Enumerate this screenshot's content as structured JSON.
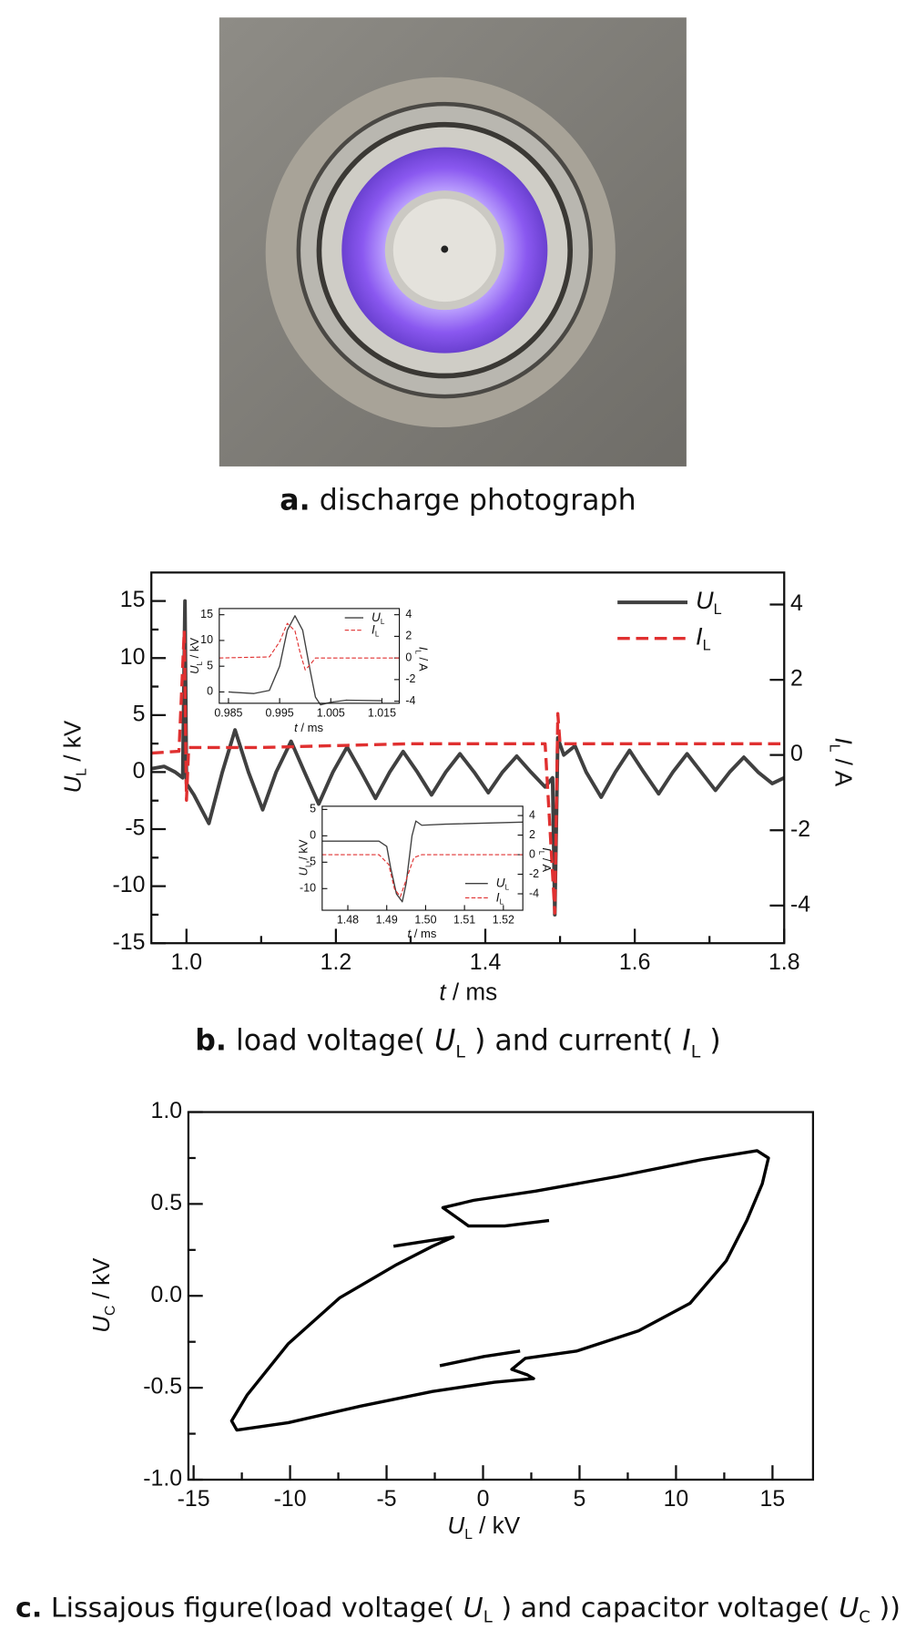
{
  "captions": [
    [
      {
        "text": "a.",
        "style": "bold"
      },
      {
        "text": " discharge photograph",
        "style": "normal"
      }
    ],
    [
      {
        "text": "b.",
        "style": "bold"
      },
      {
        "text": " load voltage( ",
        "style": "normal"
      },
      {
        "text": "U",
        "style": "italic"
      },
      {
        "text": "L",
        "style": "sub"
      },
      {
        "text": " ) and current( ",
        "style": "normal"
      },
      {
        "text": "I",
        "style": "italic"
      },
      {
        "text": "L",
        "style": "sub"
      },
      {
        "text": " )",
        "style": "normal"
      }
    ],
    [
      {
        "text": "c.",
        "style": "bold"
      },
      {
        "text": " Lissajous figure(load voltage( ",
        "style": "normal"
      },
      {
        "text": "U",
        "style": "italic"
      },
      {
        "text": "L",
        "style": "sub"
      },
      {
        "text": " ) and capacitor voltage( ",
        "style": "normal"
      },
      {
        "text": "U",
        "style": "italic"
      },
      {
        "text": "C",
        "style": "sub"
      },
      {
        "text": " ))",
        "style": "normal"
      }
    ]
  ],
  "chart_data": [
    {
      "type": "line",
      "xlabel": [
        {
          "text": "t",
          "style": "italic"
        },
        {
          "text": " / ms",
          "style": "normal"
        }
      ],
      "ylabel": [
        {
          "text": "U",
          "style": "italic"
        },
        {
          "text": "L",
          "style": "sub"
        },
        {
          "text": " / kV",
          "style": "normal"
        }
      ],
      "y2label": [
        {
          "text": "I",
          "style": "italic"
        },
        {
          "text": "L",
          "style": "sub"
        },
        {
          "text": " / A",
          "style": "normal"
        }
      ],
      "xlim": [
        0.953,
        1.8
      ],
      "xticks": [
        {
          "value": 1.0,
          "label": "1.0"
        },
        {
          "value": 1.2,
          "label": "1.2"
        },
        {
          "value": 1.4,
          "label": "1.4"
        },
        {
          "value": 1.6,
          "label": "1.6"
        },
        {
          "value": 1.8,
          "label": "1.8"
        }
      ],
      "xminor": [
        1.1,
        1.3,
        1.5,
        1.7
      ],
      "ylim": [
        -15,
        17.5
      ],
      "yticks": [
        15,
        10,
        5,
        0,
        -5,
        -10,
        -15
      ],
      "yminor": [
        12.5,
        7.5,
        2.5,
        -2.5,
        -7.5,
        -12.5
      ],
      "y2lim": [
        -5,
        4.85
      ],
      "y2ticks": [
        4,
        2,
        0,
        -2,
        -4
      ],
      "legend": "upper right",
      "series": [
        {
          "name": [
            {
              "text": "U",
              "style": "italic"
            },
            {
              "text": "L",
              "style": "sub"
            }
          ],
          "color": "#404040",
          "width": 3.5,
          "dash": "none",
          "x": [
            0.953,
            0.97,
            0.985,
            0.995,
            0.998,
            1.0,
            1.01,
            1.03,
            1.048,
            1.065,
            1.083,
            1.102,
            1.12,
            1.14,
            1.158,
            1.177,
            1.196,
            1.215,
            1.234,
            1.253,
            1.272,
            1.29,
            1.309,
            1.328,
            1.347,
            1.366,
            1.385,
            1.404,
            1.423,
            1.442,
            1.461,
            1.48,
            1.49,
            1.493,
            1.497,
            1.505,
            1.52,
            1.535,
            1.555,
            1.574,
            1.593,
            1.612,
            1.632,
            1.651,
            1.67,
            1.689,
            1.708,
            1.727,
            1.746,
            1.765,
            1.784,
            1.8
          ],
          "values": [
            0.3,
            0.5,
            0,
            -0.5,
            15,
            -1,
            -2,
            -4.5,
            0,
            3.7,
            0,
            -3.3,
            0,
            2.7,
            0,
            -2.8,
            0,
            2.2,
            0,
            -2.3,
            0,
            1.8,
            0,
            -2,
            0,
            1.6,
            0,
            -1.8,
            0,
            1.4,
            0,
            -1.3,
            -0.5,
            -12.5,
            3,
            1.5,
            2.3,
            0,
            -2.2,
            0,
            1.9,
            0,
            -1.9,
            0,
            1.6,
            0,
            -1.6,
            0,
            1.3,
            0,
            -1.0,
            -0.5
          ]
        },
        {
          "name": [
            {
              "text": "I",
              "style": "italic"
            },
            {
              "text": "L",
              "style": "sub"
            }
          ],
          "color": "#e03030",
          "width": 3,
          "dash": "12 6",
          "axis": "y2",
          "x": [
            0.953,
            0.99,
            0.997,
            1.0,
            1.003,
            1.1,
            1.3,
            1.48,
            1.493,
            1.497,
            1.5,
            1.8
          ],
          "values": [
            0.05,
            0.1,
            3.3,
            -1.2,
            0.2,
            0.2,
            0.3,
            0.3,
            -4.2,
            1.1,
            0.3,
            0.3
          ]
        }
      ]
    },
    {
      "type": "line",
      "xlabel": [
        {
          "text": "t",
          "style": "italic"
        },
        {
          "text": " / ms",
          "style": "normal"
        }
      ],
      "ylabel": [
        {
          "text": "U",
          "style": "italic"
        },
        {
          "text": "L",
          "style": "sub"
        },
        {
          "text": " / kV",
          "style": "normal"
        }
      ],
      "y2label": [
        {
          "text": "I",
          "style": "italic"
        },
        {
          "text": "L",
          "style": "sub"
        },
        {
          "text": " / A",
          "style": "normal"
        }
      ],
      "xlim": [
        0.9832,
        1.0184
      ],
      "xticks": [
        0.985,
        0.995,
        1.005,
        1.015
      ],
      "ylim": [
        -2.2,
        16.2
      ],
      "yticks": [
        15,
        10,
        5,
        0
      ],
      "y2lim": [
        -4.19,
        4.57
      ],
      "y2ticks": [
        4,
        2,
        0,
        -2,
        -4
      ],
      "legend": "upper right",
      "series": [
        {
          "name": [
            {
              "text": "U",
              "style": "italic"
            },
            {
              "text": "L",
              "style": "sub"
            }
          ],
          "color": "#404040",
          "width": 1.2,
          "dash": "none",
          "x": [
            0.985,
            0.99,
            0.993,
            0.995,
            0.9965,
            0.998,
            0.9995,
            1.001,
            1.002,
            1.003,
            1.005,
            1.008,
            1.015
          ],
          "values": [
            0,
            -0.3,
            0.3,
            5,
            12,
            14.8,
            12,
            4,
            -1,
            -2.5,
            -2,
            -1.6,
            -1.7
          ]
        },
        {
          "name": [
            {
              "text": "I",
              "style": "italic"
            },
            {
              "text": "L",
              "style": "sub"
            }
          ],
          "color": "#e03030",
          "width": 1,
          "dash": "4 2",
          "axis": "y2",
          "x": [
            0.9832,
            0.993,
            0.995,
            0.9965,
            0.998,
            0.999,
            1.0,
            1.001,
            1.002,
            1.0184
          ],
          "values": [
            0,
            0.1,
            1.5,
            3.2,
            2.5,
            0.5,
            -1.1,
            -0.6,
            0,
            0
          ]
        }
      ]
    },
    {
      "type": "line",
      "xlabel": [
        {
          "text": "t",
          "style": "italic"
        },
        {
          "text": " / ms",
          "style": "normal"
        }
      ],
      "ylabel": [
        {
          "text": "U",
          "style": "italic"
        },
        {
          "text": "L",
          "style": "sub"
        },
        {
          "text": " / kV",
          "style": "normal"
        }
      ],
      "y2label": [
        {
          "text": "I",
          "style": "italic"
        },
        {
          "text": "L",
          "style": "sub"
        },
        {
          "text": " / A",
          "style": "normal"
        }
      ],
      "xlim": [
        1.4734,
        1.525
      ],
      "xticks": [
        1.48,
        1.49,
        {
          "value": 1.5,
          "label": "1.50"
        },
        1.51,
        1.52
      ],
      "ylim": [
        -14.1,
        5.6
      ],
      "yticks": [
        5,
        0,
        -5,
        -10
      ],
      "y2lim": [
        -5.68,
        4.95
      ],
      "y2ticks": [
        4,
        2,
        0,
        -2,
        -4
      ],
      "legend": "lower right",
      "series": [
        {
          "name": [
            {
              "text": "U",
              "style": "italic"
            },
            {
              "text": "L",
              "style": "sub"
            }
          ],
          "color": "#404040",
          "width": 1.2,
          "dash": "none",
          "x": [
            1.4734,
            1.488,
            1.49,
            1.491,
            1.4925,
            1.494,
            1.495,
            1.4965,
            1.4975,
            1.499,
            1.505,
            1.525
          ],
          "values": [
            -1,
            -1,
            -2,
            -6,
            -11,
            -12.5,
            -9,
            0,
            2.8,
            2,
            2.2,
            2.6
          ]
        },
        {
          "name": [
            {
              "text": "I",
              "style": "italic"
            },
            {
              "text": "L",
              "style": "sub"
            }
          ],
          "color": "#e03030",
          "width": 1,
          "dash": "4 2",
          "axis": "y2",
          "x": [
            1.4734,
            1.488,
            1.4905,
            1.492,
            1.4935,
            1.4955,
            1.497,
            1.499,
            1.525
          ],
          "values": [
            0,
            0,
            -1,
            -3.5,
            -4.3,
            -2,
            -0.3,
            0,
            0
          ]
        }
      ]
    },
    {
      "type": "line",
      "xlabel": [
        {
          "text": "U",
          "style": "italic"
        },
        {
          "text": "L",
          "style": "sub"
        },
        {
          "text": " / kV",
          "style": "normal"
        }
      ],
      "ylabel": [
        {
          "text": "U",
          "style": "italic"
        },
        {
          "text": "C",
          "style": "sub"
        },
        {
          "text": " / kV",
          "style": "normal"
        }
      ],
      "xlim": [
        -15.27,
        17.1
      ],
      "xticks": [
        -15,
        -10,
        -5,
        0,
        5,
        10,
        15
      ],
      "xminor": [
        -12.5,
        -7.5,
        -2.5,
        2.5,
        7.5,
        12.5
      ],
      "ylim": [
        -1,
        1
      ],
      "yticks": [
        {
          "value": 1.0,
          "label": "1.0"
        },
        {
          "value": 0.5,
          "label": "0.5"
        },
        {
          "value": 0.0,
          "label": "0.0"
        },
        {
          "value": -0.5,
          "label": "-0.5"
        },
        {
          "value": -1.0,
          "label": "-1.0"
        }
      ],
      "yminor": [
        0.75,
        0.25,
        -0.25,
        -0.75
      ],
      "series": [
        {
          "color": "#000000",
          "width": 3,
          "dash": "none",
          "x": [
            3.42,
            1.12,
            -0.75,
            -1.55,
            -2.08,
            -0.48,
            2.72,
            6.99,
            11.27,
            14.2,
            14.79,
            14.47,
            13.67,
            12.6,
            10.73,
            8.06,
            4.86,
            2.19,
            1.49,
            2.3,
            2.62,
            0.59,
            -2.62,
            -6.35,
            -10.09,
            -12.76,
            -13.03,
            -12.23,
            -10.09,
            -7.42,
            -4.48,
            -2.62,
            -1.55,
            -4.64,
            null,
            -2.24,
            0.05,
            1.92
          ],
          "values": [
            0.41,
            0.38,
            0.38,
            0.44,
            0.48,
            0.52,
            0.57,
            0.65,
            0.74,
            0.79,
            0.75,
            0.61,
            0.41,
            0.19,
            -0.04,
            -0.19,
            -0.3,
            -0.34,
            -0.4,
            -0.43,
            -0.45,
            -0.47,
            -0.52,
            -0.6,
            -0.69,
            -0.73,
            -0.68,
            -0.54,
            -0.26,
            -0.01,
            0.17,
            0.27,
            0.32,
            0.27,
            null,
            -0.38,
            -0.33,
            -0.3
          ]
        }
      ]
    }
  ]
}
